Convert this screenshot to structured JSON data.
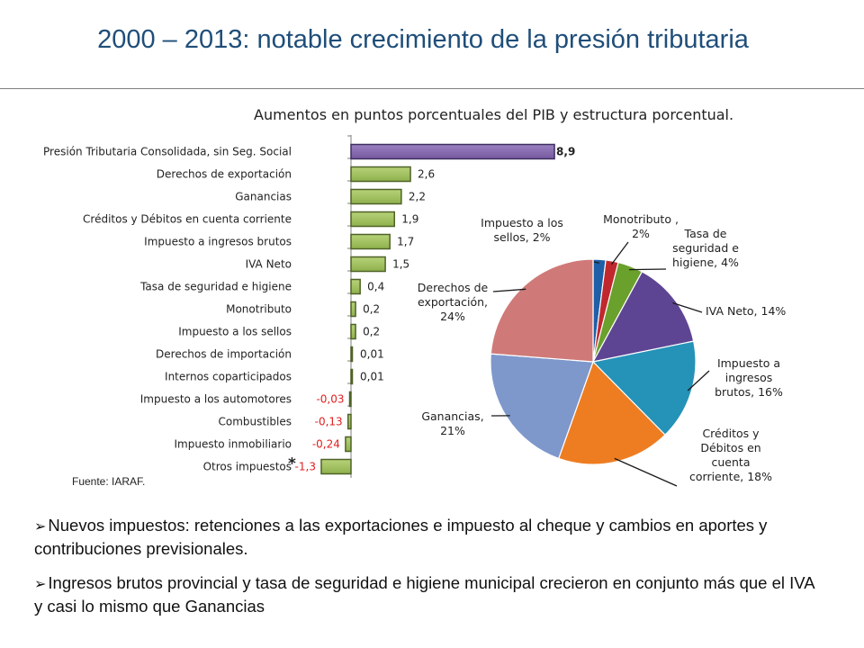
{
  "slide": {
    "title": "2000 – 2013: notable crecimiento de la presión tributaria",
    "source": "Fuente: IARAF.",
    "bullets": [
      "Nuevos impuestos: retenciones a las exportaciones e impuesto al cheque y cambios en aportes y contribuciones previsionales.",
      "Ingresos brutos provincial y tasa de seguridad e higiene municipal crecieron en conjunto más que el IVA y casi lo mismo que Ganancias"
    ]
  },
  "chart_data": [
    {
      "type": "bar",
      "orientation": "horizontal",
      "title": "Aumentos en puntos porcentuales del PIB y estructura porcentual.",
      "categories": [
        "Presión Tributaria Consolidada, sin Seg. Social",
        "Derechos de exportación",
        "Ganancias",
        "Créditos y Débitos en cuenta corriente",
        "Impuesto a ingresos brutos",
        "IVA Neto",
        "Tasa de seguridad e higiene",
        "Monotributo",
        "Impuesto a los sellos",
        "Derechos de importación",
        "Internos coparticipados",
        "Impuesto a los automotores",
        "Combustibles",
        "Impuesto inmobiliario",
        "Otros impuestos"
      ],
      "values": [
        8.9,
        2.6,
        2.2,
        1.9,
        1.7,
        1.5,
        0.4,
        0.2,
        0.2,
        0.01,
        0.01,
        -0.03,
        -0.13,
        -0.24,
        -1.3
      ],
      "value_labels": [
        "8,9",
        "2,6",
        "2,2",
        "1,9",
        "1,7",
        "1,5",
        "0,4",
        "0,2",
        "0,2",
        "0,01",
        "0,01",
        "-0,03",
        "-0,13",
        "-0,24",
        "-1,3"
      ],
      "highlight_label": "8,9",
      "asterisk": "*",
      "colors": {
        "highlight": "#8064a2",
        "bar": "#9bbb59",
        "bar_border": "#4f6228",
        "negative_label": "#e02020",
        "label": "#222222"
      }
    },
    {
      "type": "pie",
      "slices": [
        {
          "label": "Impuesto a los sellos, 2%",
          "value": 2,
          "color": "#1f5fa8"
        },
        {
          "label": "Monotributo , 2%",
          "value": 2,
          "color": "#c0282d"
        },
        {
          "label": "Tasa de seguridad e higiene, 4%",
          "value": 4,
          "color": "#6aa02c"
        },
        {
          "label": "IVA Neto, 14%",
          "value": 14,
          "color": "#5e4593"
        },
        {
          "label": "Impuesto a ingresos brutos, 16%",
          "value": 16,
          "color": "#2592b8"
        },
        {
          "label": "Créditos y Débitos en cuenta corriente, 18%",
          "value": 18,
          "color": "#ee7d22"
        },
        {
          "label": "Ganancias, 21%",
          "value": 21,
          "color": "#7e98cc"
        },
        {
          "label": "Derechos de exportación, 24%",
          "value": 24,
          "color": "#cf7a78"
        }
      ]
    }
  ]
}
